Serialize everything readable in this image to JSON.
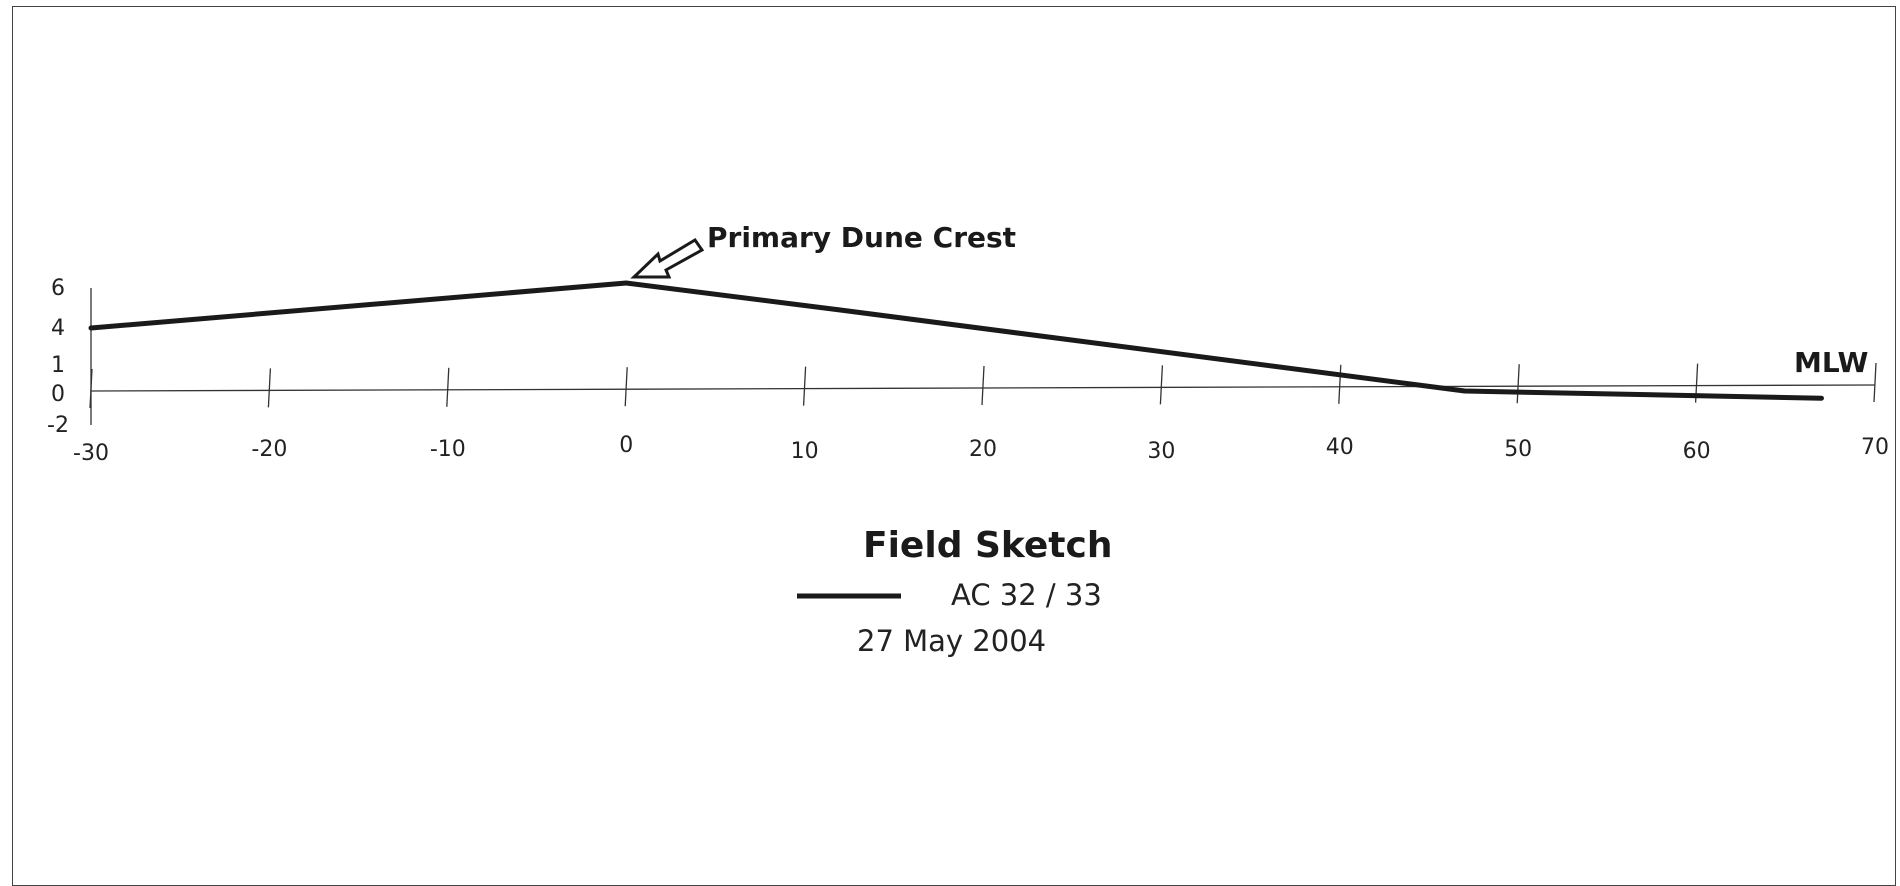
{
  "chart_data": {
    "type": "line",
    "title": "Field Sketch",
    "subtitle": "27 May 2004",
    "series": [
      {
        "name": "AC 32 / 33",
        "x": [
          -30,
          0,
          12,
          47,
          67
        ],
        "y": [
          3.5,
          6,
          4.5,
          0,
          -0.4
        ]
      }
    ],
    "x_ticks": [
      -30,
      -20,
      -10,
      0,
      10,
      20,
      30,
      40,
      50,
      60,
      70
    ],
    "y_tick_labels": [
      "6",
      "4",
      "1",
      "0",
      "-2"
    ],
    "annotations": [
      {
        "text": "Primary Dune Crest",
        "x": 0,
        "y": 6
      },
      {
        "text": "MLW",
        "x": 70,
        "y": 0
      }
    ],
    "xlim": [
      -30,
      70
    ],
    "ylim": [
      -2,
      6
    ],
    "grid": false,
    "legend": "bottom-center",
    "colors": {
      "line": "#1a1a1a",
      "axis": "#333333"
    }
  }
}
